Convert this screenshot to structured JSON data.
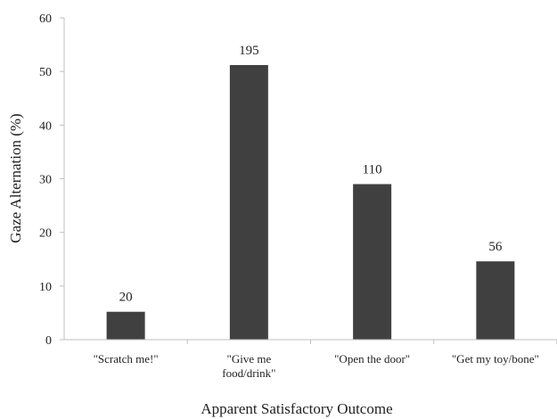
{
  "chart_data": {
    "type": "bar",
    "categories": [
      [
        "\"Scratch me!\""
      ],
      [
        "\"Give me",
        "food/drink\""
      ],
      [
        "\"Open the door\""
      ],
      [
        "\"Get my toy/bone\""
      ]
    ],
    "values": [
      5.2,
      51.2,
      29.0,
      14.6
    ],
    "data_labels": [
      "20",
      "195",
      "110",
      "56"
    ],
    "title": "",
    "xlabel": "Apparent Satisfactory Outcome",
    "ylabel": "Gaze Alternation (%)",
    "ylim": [
      0,
      60
    ],
    "yticks": [
      "0",
      "10",
      "20",
      "30",
      "40",
      "50",
      "60"
    ],
    "grid": false,
    "legend": "none",
    "bar_color": "#404040",
    "axis_color": "#bfbfbf"
  }
}
